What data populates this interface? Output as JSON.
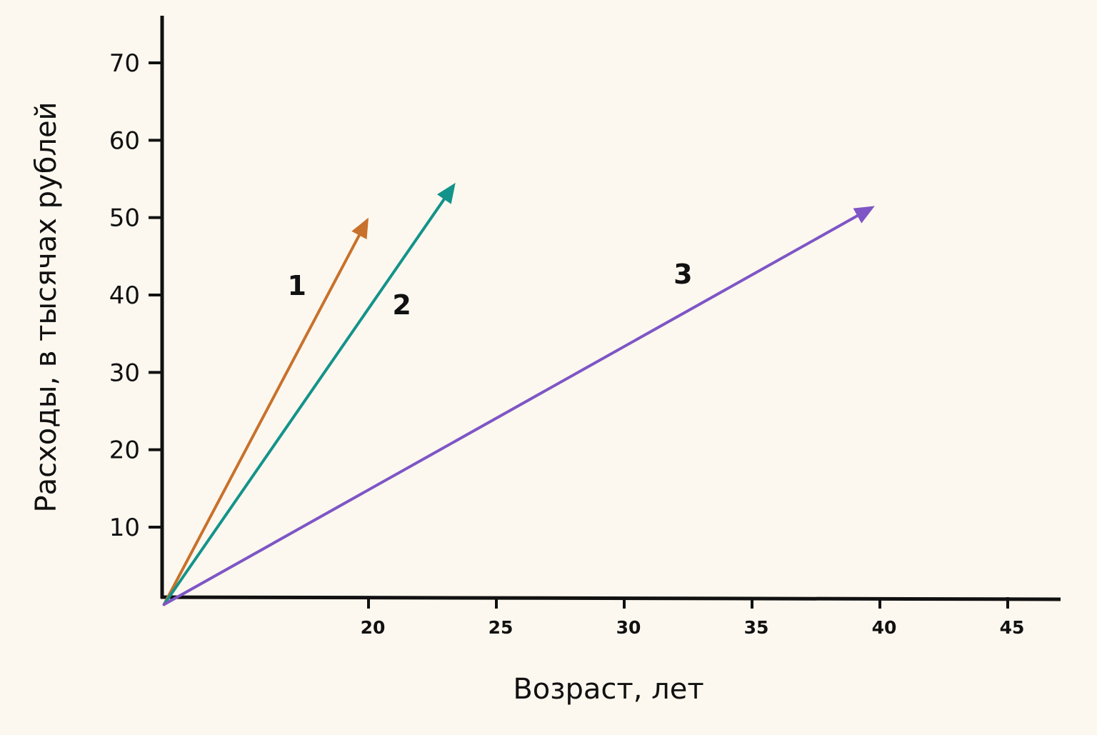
{
  "chart_data": {
    "type": "line",
    "xlabel": "Возраст, лет",
    "ylabel": "Расходы, в тысячах рублей",
    "xlim": [
      12,
      47
    ],
    "ylim": [
      0,
      75
    ],
    "x_ticks": [
      20,
      25,
      30,
      35,
      40,
      45
    ],
    "y_ticks": [
      10,
      20,
      30,
      40,
      50,
      60,
      70
    ],
    "grid": false,
    "legend": "none",
    "series": [
      {
        "name": "1",
        "color": "#c8712c",
        "style": "arrow",
        "points": [
          {
            "x": 12,
            "y": 0
          },
          {
            "x": 20,
            "y": 50
          }
        ],
        "label_at": {
          "x": 17.2,
          "y": 40
        }
      },
      {
        "name": "2",
        "color": "#13938a",
        "style": "arrow",
        "points": [
          {
            "x": 12,
            "y": 0
          },
          {
            "x": 23.4,
            "y": 54.5
          }
        ],
        "label_at": {
          "x": 21.3,
          "y": 37.5
        }
      },
      {
        "name": "3",
        "color": "#7e56c6",
        "style": "arrow",
        "points": [
          {
            "x": 12,
            "y": 0
          },
          {
            "x": 39.8,
            "y": 51.5
          }
        ],
        "label_at": {
          "x": 32.3,
          "y": 41.5
        }
      }
    ]
  }
}
